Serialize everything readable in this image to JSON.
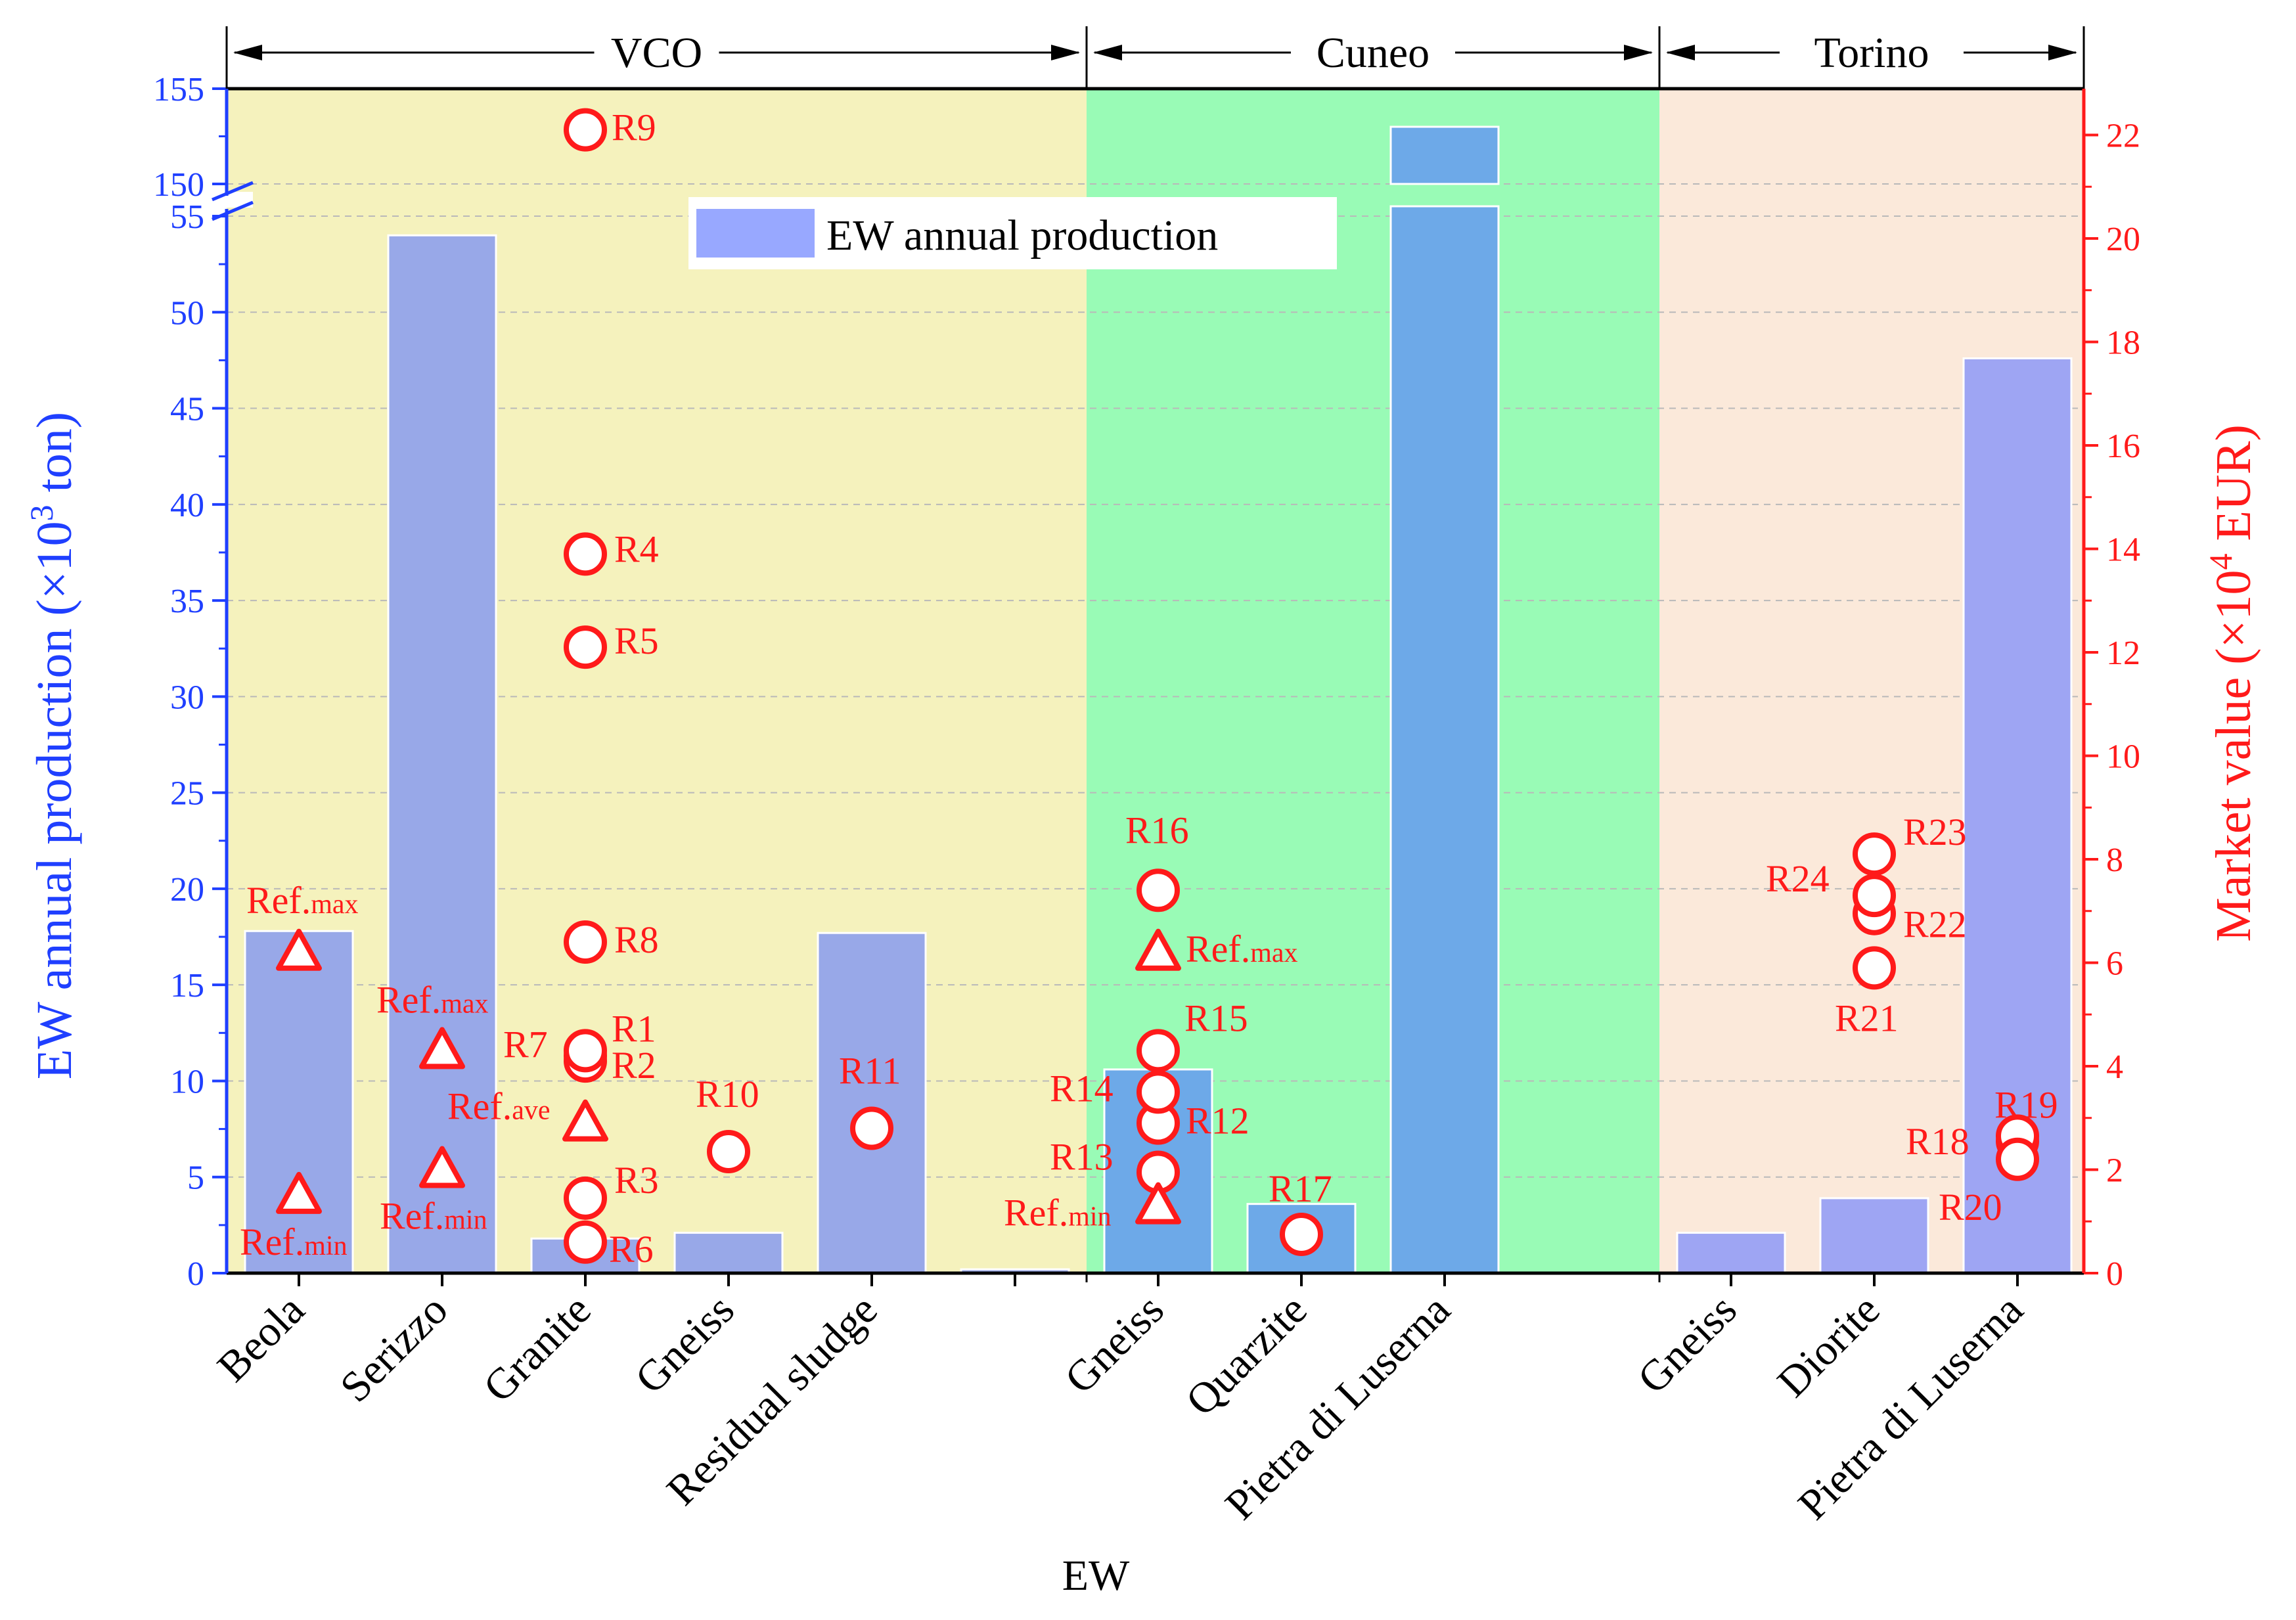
{
  "chart_data": {
    "type": "bar",
    "xlabel": "EW",
    "ylabel_left": "EW annual production (×10³ ton)",
    "ylabel_right": "Market value (×10⁴ EUR)",
    "legend": {
      "label": "EW annual production",
      "placement": "top-center"
    },
    "left_axis": {
      "lower_segment": [
        0,
        55
      ],
      "upper_segment": [
        150,
        155
      ],
      "tick_labels": [
        "0",
        "5",
        "10",
        "15",
        "20",
        "25",
        "30",
        "35",
        "40",
        "45",
        "50",
        "55",
        "150",
        "155"
      ],
      "tick_values": [
        0,
        5,
        10,
        15,
        20,
        25,
        30,
        35,
        40,
        45,
        50,
        55,
        150,
        155
      ]
    },
    "right_axis": {
      "range": [
        0,
        23
      ],
      "tick_labels": [
        "0",
        "2",
        "4",
        "6",
        "8",
        "10",
        "12",
        "14",
        "16",
        "18",
        "20",
        "22"
      ],
      "tick_values": [
        0,
        2,
        4,
        6,
        8,
        10,
        12,
        14,
        16,
        18,
        20,
        22
      ]
    },
    "regions": [
      {
        "name": "VCO",
        "color": "#f5f2bd",
        "span": [
          0,
          5.5
        ]
      },
      {
        "name": "Cuneo",
        "color": "#99fbb6",
        "span": [
          5.5,
          9.5
        ]
      },
      {
        "name": "Torino",
        "color": "#fbe9da",
        "span": [
          9.5,
          12.5
        ]
      }
    ],
    "categories": [
      {
        "label": "Beola",
        "x": 0,
        "value": 17.8,
        "color": "#98a8e8"
      },
      {
        "label": "Serizzo",
        "x": 1,
        "value": 54.0,
        "color": "#98a8e8"
      },
      {
        "label": "Granite",
        "x": 2,
        "value": 1.8,
        "color": "#98a8e8"
      },
      {
        "label": "Gneiss",
        "x": 3,
        "value": 2.1,
        "color": "#98a8e8"
      },
      {
        "label": "Residual sludge",
        "x": 4,
        "value": 17.7,
        "color": "#98a8e8"
      },
      {
        "label": "",
        "x": 5,
        "value": 0.2,
        "color": "#98a8e8"
      },
      {
        "label": "Gneiss",
        "x": 6,
        "value": 10.6,
        "color": "#6da9e8"
      },
      {
        "label": "Quarzite",
        "x": 7,
        "value": 3.6,
        "color": "#6da9e8"
      },
      {
        "label": "Pietra di Luserna",
        "x": 8,
        "value": 153.0,
        "color": "#6da9e8"
      },
      {
        "label": "Gneiss",
        "x": 10,
        "value": 2.1,
        "color": "#9ea5f3"
      },
      {
        "label": "Diorite",
        "x": 11,
        "value": 3.9,
        "color": "#9ea5f3"
      },
      {
        "label": "Pietra di Luserna",
        "x": 12,
        "value": 47.6,
        "color": "#9ea5f3"
      }
    ],
    "market_points": [
      {
        "label": "R1",
        "x": 2,
        "y": 4.2
      },
      {
        "label": "R2",
        "x": 2,
        "y": 4.1
      },
      {
        "label": "R3",
        "x": 2,
        "y": 1.45
      },
      {
        "label": "R4",
        "x": 2,
        "y": 13.9
      },
      {
        "label": "R5",
        "x": 2,
        "y": 12.1
      },
      {
        "label": "R6",
        "x": 2,
        "y": 0.6
      },
      {
        "label": "R7",
        "x": 2,
        "y": 4.3
      },
      {
        "label": "R8",
        "x": 2,
        "y": 6.4
      },
      {
        "label": "R9",
        "x": 2,
        "y": 22.1
      },
      {
        "label": "R10",
        "x": 3,
        "y": 2.35
      },
      {
        "label": "R11",
        "x": 4,
        "y": 2.8
      },
      {
        "label": "R12",
        "x": 6,
        "y": 2.9
      },
      {
        "label": "R13",
        "x": 6,
        "y": 1.95
      },
      {
        "label": "R14",
        "x": 6,
        "y": 3.5
      },
      {
        "label": "R15",
        "x": 6,
        "y": 4.3
      },
      {
        "label": "R16",
        "x": 6,
        "y": 7.4
      },
      {
        "label": "R17",
        "x": 7,
        "y": 0.75
      },
      {
        "label": "R18",
        "x": 12,
        "y": 2.55
      },
      {
        "label": "R19",
        "x": 12,
        "y": 2.65
      },
      {
        "label": "R20",
        "x": 12,
        "y": 2.2
      },
      {
        "label": "R21",
        "x": 11,
        "y": 5.9
      },
      {
        "label": "R22",
        "x": 11,
        "y": 6.95
      },
      {
        "label": "R23",
        "x": 11,
        "y": 8.1
      },
      {
        "label": "R24",
        "x": 11,
        "y": 7.3
      }
    ],
    "reference_points": [
      {
        "label": "Ref.max",
        "x": 0,
        "y": 6.2
      },
      {
        "label": "Ref.min",
        "x": 0,
        "y": 1.5
      },
      {
        "label": "Ref.max",
        "x": 1,
        "y": 4.3
      },
      {
        "label": "Ref.min",
        "x": 1,
        "y": 2.0
      },
      {
        "label": "Ref.ave",
        "x": 2,
        "y": 2.9
      },
      {
        "label": "Ref.max",
        "x": 6,
        "y": 6.2
      },
      {
        "label": "Ref.min",
        "x": 6,
        "y": 1.3
      }
    ]
  }
}
